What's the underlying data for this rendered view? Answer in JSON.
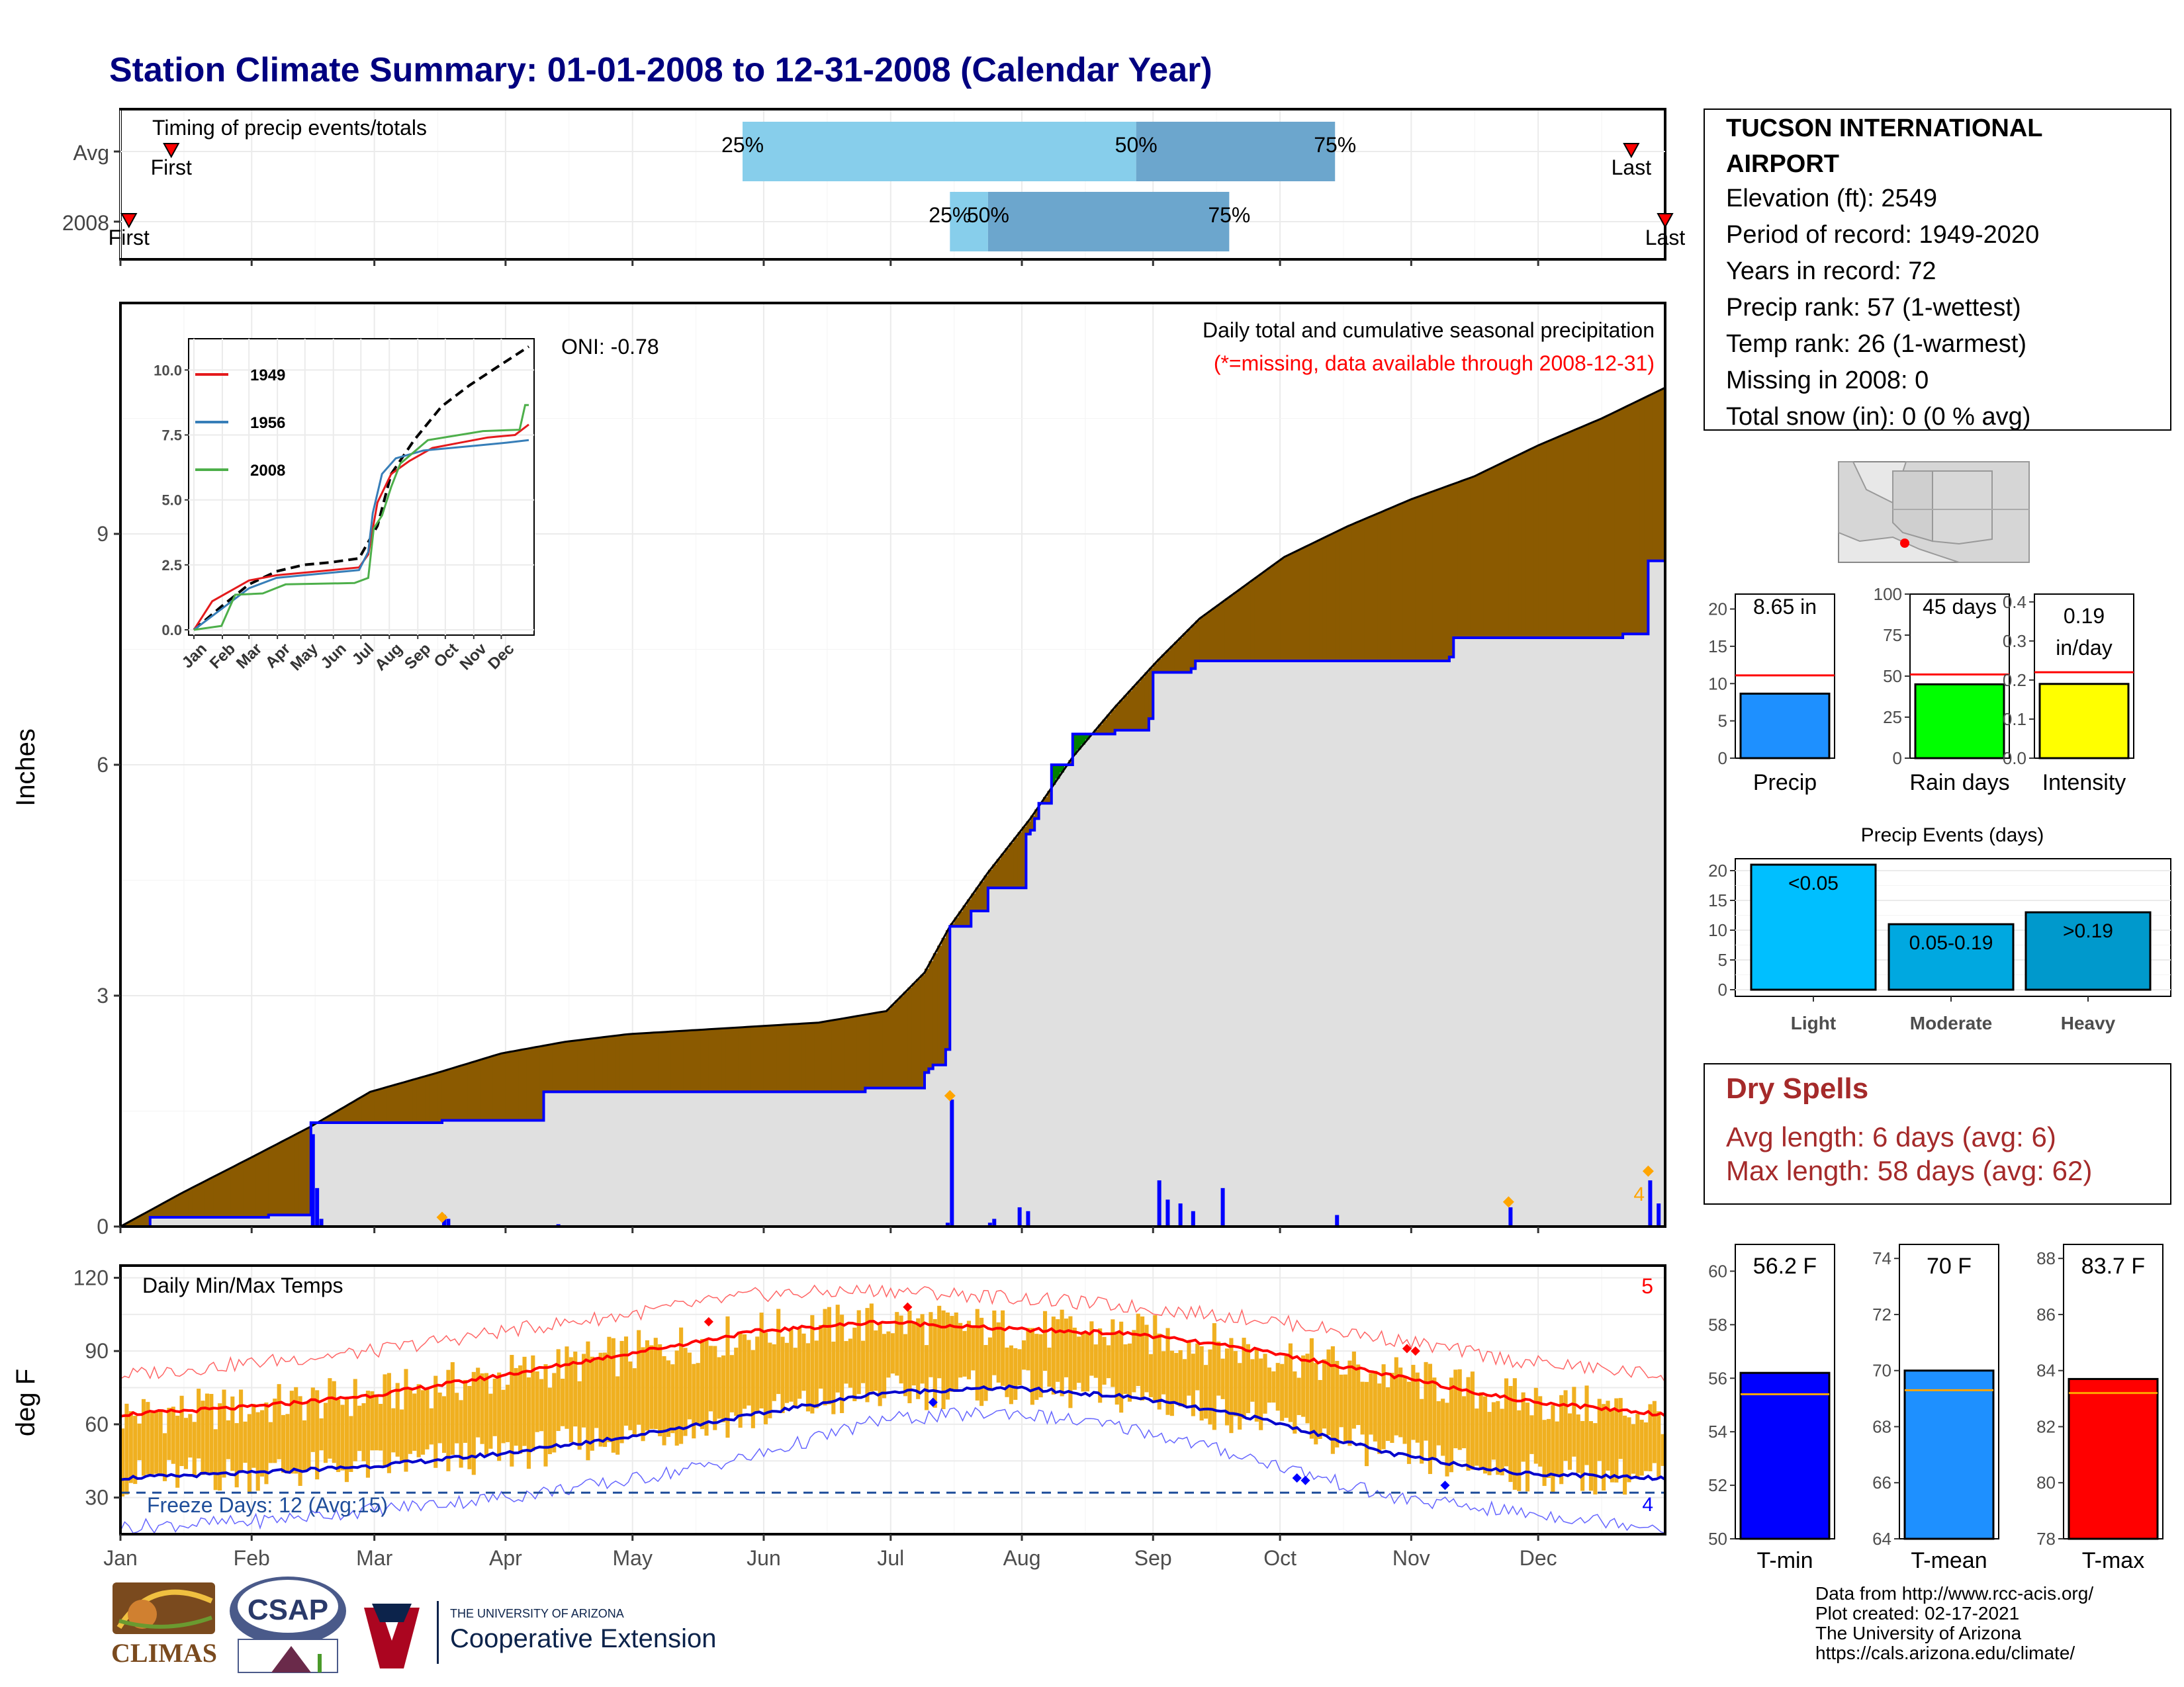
{
  "title": "Station Climate Summary: 01-01-2008 to 12-31-2008 (Calendar Year)",
  "colors": {
    "title": "#000080",
    "above_avg": "#8B5A00",
    "below_avg": "#008000",
    "normal_fill": "#E0E0E0",
    "actual_line": "#0000FF",
    "precip_bar": "#1E90FF",
    "raindays_bar": "#00FF00",
    "intensity_bar": "#FFFF00",
    "temp_bar": "#F0B020",
    "tmax_avg": "#FF0000",
    "tmin_avg": "#0000CC",
    "dry_spells": "#A52A2A",
    "tmin_bar": "#0000FF",
    "tmean_bar": "#1E90FF",
    "tmax_bar": "#FF0000"
  },
  "station": {
    "name": "TUCSON INTERNATIONAL AIRPORT",
    "elevation": "Elevation (ft): 2549",
    "period": "Period of record: 1949-2020",
    "years": "Years in record: 72",
    "precip_rank": "Precip rank: 57 (1-wettest)",
    "temp_rank": "Temp rank: 26 (1-warmest)",
    "missing": "Missing in 2008: 0",
    "snow": "Total snow (in): 0 (0 % avg)"
  },
  "timing": {
    "title": "Timing of precip events/totals",
    "rows": [
      "Avg",
      "2008"
    ],
    "first_label": "First",
    "last_label": "Last",
    "p25": "25%",
    "p50": "50%",
    "p75": "75%",
    "avg": {
      "first_day": 12,
      "p25_day": 147,
      "p50_day": 240,
      "p75_day": 287,
      "last_day": 357
    },
    "y2008": {
      "first_day": 2,
      "p25_day": 196,
      "p50_day": 205,
      "p75_day": 262,
      "last_day": 365
    }
  },
  "precip_panel": {
    "ylabel": "Inches",
    "oni": "ONI: -0.78",
    "caption1": "Daily total and cumulative seasonal precipitation",
    "caption2": "(*=missing, data available through 2008-12-31)",
    "yticks": [
      "0",
      "3",
      "6",
      "9"
    ],
    "count_label": "4",
    "ylim": [
      0,
      12
    ]
  },
  "inset": {
    "series": [
      {
        "name": "1949"
      },
      {
        "name": "1956"
      },
      {
        "name": "2008"
      }
    ],
    "yticks": [
      "0.0",
      "2.5",
      "5.0",
      "7.5",
      "10.0"
    ],
    "months": [
      "Jan",
      "Feb",
      "Mar",
      "Apr",
      "May",
      "Jun",
      "Jul",
      "Aug",
      "Sep",
      "Oct",
      "Nov",
      "Dec"
    ]
  },
  "temp_panel": {
    "ylabel": "deg F",
    "title": "Daily Min/Max Temps",
    "freeze": "Freeze Days: 12 (Avg:15)",
    "yticks": [
      "30",
      "60",
      "90",
      "120"
    ],
    "count_max": "5",
    "count_min": "4",
    "ylim": [
      15,
      125
    ]
  },
  "months": [
    "Jan",
    "Feb",
    "Mar",
    "Apr",
    "May",
    "Jun",
    "Jul",
    "Aug",
    "Sep",
    "Oct",
    "Nov",
    "Dec"
  ],
  "summary_bars": [
    {
      "label": "Precip",
      "value_label": "8.65 in",
      "value": 8.65,
      "avg": 11.1,
      "yticks": [
        "0",
        "5",
        "10",
        "15",
        "20"
      ],
      "ymax": 22
    },
    {
      "label": "Rain days",
      "value_label": "45 days",
      "value": 45,
      "avg": 51,
      "yticks": [
        "0",
        "25",
        "50",
        "75",
        "100"
      ],
      "ymax": 100
    },
    {
      "label": "Intensity",
      "value_label": "0.19",
      "value_label2": "in/day",
      "value": 0.19,
      "avg": 0.22,
      "yticks": [
        "0.0",
        "0.1",
        "0.2",
        "0.3",
        "0.4"
      ],
      "ymax": 0.42
    }
  ],
  "events": {
    "title": "Precip Events (days)",
    "yticks": [
      "0",
      "5",
      "10",
      "15",
      "20"
    ],
    "bars": [
      {
        "name": "Light",
        "label": "<0.05",
        "value": 21
      },
      {
        "name": "Moderate",
        "label": "0.05-0.19",
        "value": 11
      },
      {
        "name": "Heavy",
        "label": ">0.19",
        "value": 13
      }
    ]
  },
  "dry_spells": {
    "title": "Dry Spells",
    "avg": "Avg length: 6 days (avg: 6)",
    "max": "Max length: 58 days (avg: 62)"
  },
  "temp_bars": [
    {
      "label": "T-min",
      "value_label": "56.2 F",
      "value": 56.2,
      "avg": 55.4,
      "yticks": [
        "50",
        "52",
        "54",
        "56",
        "58",
        "60"
      ],
      "ymin": 50,
      "ymax": 61
    },
    {
      "label": "T-mean",
      "value_label": "70 F",
      "value": 70.0,
      "avg": 69.3,
      "yticks": [
        "64",
        "66",
        "68",
        "70",
        "72",
        "74"
      ],
      "ymin": 64,
      "ymax": 74.5
    },
    {
      "label": "T-max",
      "value_label": "83.7 F",
      "value": 83.7,
      "avg": 83.2,
      "yticks": [
        "78",
        "80",
        "82",
        "84",
        "86",
        "88"
      ],
      "ymin": 78,
      "ymax": 88.5
    }
  ],
  "footer": {
    "line1": "Data from http://www.rcc-acis.org/",
    "line2": "Plot created: 02-17-2021",
    "line3": "The University of Arizona",
    "line4": "https://cals.arizona.edu/climate/"
  },
  "logos": {
    "climas": "CLIMAS",
    "csap": "CSAP",
    "ua_small": "THE UNIVERSITY OF ARIZONA",
    "ua_big": "Cooperative Extension"
  },
  "chart_data": [
    {
      "type": "area",
      "title": "Daily total and cumulative seasonal precipitation",
      "ylabel": "Inches",
      "ylim": [
        0,
        12
      ],
      "series": [
        {
          "name": "avg_cumulative",
          "x": [
            0,
            15,
            31,
            45,
            59,
            75,
            90,
            105,
            120,
            135,
            150,
            165,
            181,
            190,
            196,
            205,
            215,
            225,
            235,
            245,
            255,
            265,
            275,
            290,
            305,
            320,
            335,
            350,
            365
          ],
          "values": [
            0,
            0.45,
            0.9,
            1.3,
            1.75,
            2.0,
            2.25,
            2.4,
            2.5,
            2.55,
            2.6,
            2.65,
            2.8,
            3.3,
            3.9,
            4.6,
            5.3,
            6.1,
            6.75,
            7.35,
            7.9,
            8.3,
            8.7,
            9.1,
            9.45,
            9.75,
            10.15,
            10.5,
            10.9
          ]
        },
        {
          "name": "2008_cumulative",
          "x": [
            0,
            6,
            7,
            30,
            35,
            44,
            45,
            75,
            76,
            80,
            100,
            175,
            176,
            190,
            191,
            192,
            195,
            196,
            200,
            201,
            205,
            213,
            214,
            215,
            216,
            217,
            219,
            220,
            225,
            235,
            243,
            244,
            253,
            254,
            314,
            315,
            355,
            360,
            361,
            365
          ],
          "values": [
            0,
            0,
            0.12,
            0.12,
            0.15,
            0.15,
            1.35,
            1.35,
            1.38,
            1.38,
            1.75,
            1.75,
            1.8,
            2.0,
            2.05,
            2.1,
            2.3,
            3.9,
            3.9,
            4.1,
            4.4,
            4.4,
            5.1,
            5.15,
            5.3,
            5.5,
            5.5,
            6.0,
            6.4,
            6.45,
            6.6,
            7.2,
            7.25,
            7.35,
            7.4,
            7.65,
            7.7,
            7.7,
            8.65,
            8.65
          ]
        }
      ],
      "daily_precip": {
        "x": [
          45,
          46,
          47,
          76,
          77,
          103,
          195,
          196,
          205,
          206,
          212,
          214,
          245,
          247,
          250,
          253,
          260,
          287,
          328,
          361,
          363
        ],
        "values": [
          1.2,
          0.5,
          0.1,
          0.15,
          0.1,
          0.03,
          0.05,
          1.65,
          0.05,
          0.1,
          0.25,
          0.2,
          0.6,
          0.35,
          0.3,
          0.2,
          0.5,
          0.15,
          0.25,
          0.6,
          0.3
        ]
      },
      "inset": {
        "type": "line",
        "ylim": [
          0,
          11
        ],
        "series": [
          {
            "name": "avg",
            "x": [
              0,
              30,
              60,
              90,
              120,
              150,
              180,
              200,
              215,
              240,
              270,
              300,
              330,
              365
            ],
            "values": [
              0,
              0.9,
              1.75,
              2.25,
              2.5,
              2.6,
              2.75,
              4.0,
              6.0,
              7.3,
              8.6,
              9.4,
              10.1,
              10.9
            ]
          },
          {
            "name": "1949",
            "x": [
              0,
              20,
              40,
              60,
              90,
              120,
              150,
              180,
              190,
              200,
              215,
              235,
              260,
              290,
              320,
              350,
              365
            ],
            "values": [
              0,
              1.1,
              1.5,
              1.9,
              2.1,
              2.2,
              2.3,
              2.4,
              2.9,
              4.9,
              6.0,
              6.5,
              7.0,
              7.2,
              7.4,
              7.5,
              7.9
            ]
          },
          {
            "name": "1956",
            "x": [
              0,
              30,
              60,
              90,
              120,
              150,
              180,
              190,
              195,
              205,
              220,
              250,
              280,
              310,
              340,
              365
            ],
            "values": [
              0,
              0.8,
              1.6,
              2.0,
              2.1,
              2.2,
              2.3,
              3.0,
              4.5,
              6.0,
              6.6,
              6.9,
              7.0,
              7.1,
              7.2,
              7.3
            ]
          },
          {
            "name": "2008",
            "x": [
              0,
              30,
              45,
              75,
              100,
              175,
              190,
              196,
              205,
              215,
              225,
              255,
              315,
              355,
              361,
              365
            ],
            "values": [
              0,
              0.15,
              1.35,
              1.4,
              1.75,
              1.8,
              2.0,
              3.9,
              4.4,
              5.5,
              6.4,
              7.3,
              7.65,
              7.7,
              8.65,
              8.65
            ]
          }
        ]
      }
    },
    {
      "type": "line",
      "title": "Daily Min/Max Temps",
      "ylabel": "deg F",
      "ylim": [
        15,
        125
      ],
      "series": [
        {
          "name": "avg_max",
          "x": [
            0,
            30,
            60,
            90,
            120,
            150,
            180,
            210,
            240,
            270,
            300,
            330,
            365
          ],
          "values": [
            64,
            67,
            72,
            80,
            89,
            98,
            102,
            99,
            97,
            90,
            80,
            70,
            64
          ]
        },
        {
          "name": "avg_min",
          "x": [
            0,
            30,
            60,
            90,
            120,
            150,
            180,
            210,
            240,
            270,
            300,
            330,
            365
          ],
          "values": [
            38,
            40,
            43,
            48,
            55,
            64,
            73,
            75,
            71,
            62,
            48,
            40,
            38
          ]
        },
        {
          "name": "record_high",
          "x": [
            0,
            30,
            60,
            90,
            120,
            150,
            180,
            210,
            240,
            270,
            300,
            330,
            365
          ],
          "values": [
            80,
            85,
            90,
            98,
            105,
            113,
            115,
            112,
            108,
            103,
            95,
            86,
            80
          ]
        },
        {
          "name": "record_low",
          "x": [
            0,
            30,
            60,
            90,
            120,
            150,
            180,
            210,
            240,
            270,
            300,
            330,
            365
          ],
          "values": [
            18,
            20,
            25,
            30,
            37,
            47,
            62,
            65,
            58,
            45,
            30,
            24,
            18
          ]
        }
      ],
      "freeze_threshold": 32
    }
  ]
}
